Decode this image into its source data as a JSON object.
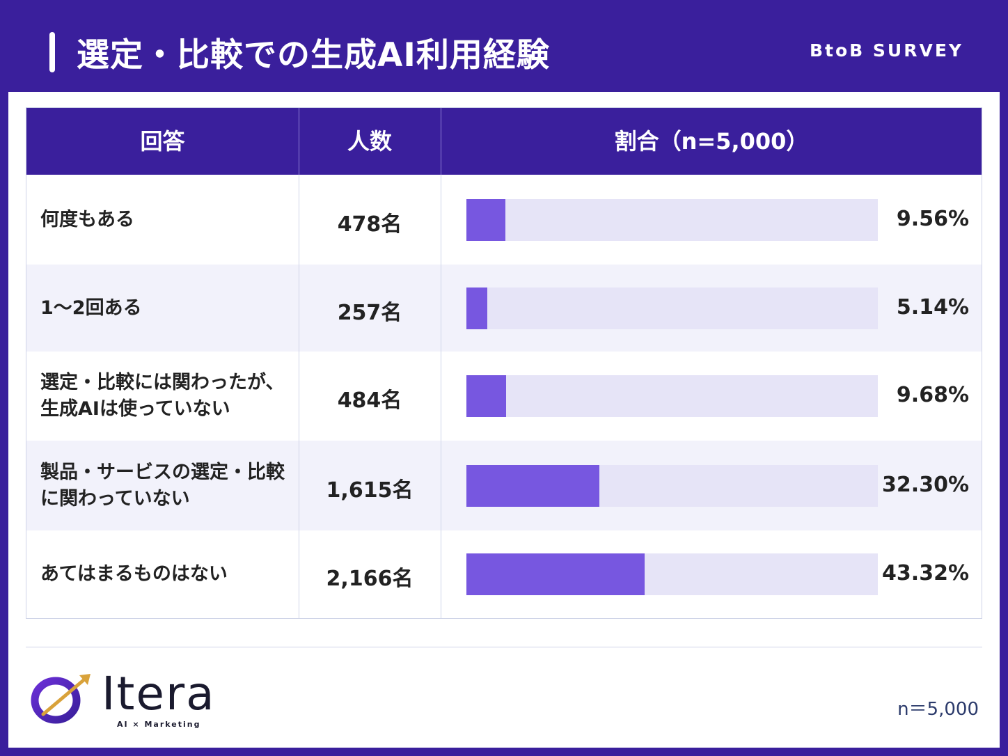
{
  "header": {
    "title": "選定・比較での生成AI利用経験",
    "tag": "BtoB SURVEY"
  },
  "table": {
    "columns": [
      "回答",
      "人数",
      "割合（n=5,000）"
    ]
  },
  "chart_data": {
    "type": "table",
    "bar_max": 100,
    "rows": [
      {
        "label_lines": [
          "何度もある"
        ],
        "count": "478名",
        "percent_text": "9.56%",
        "percent": 9.56
      },
      {
        "label_lines": [
          "1〜2回ある"
        ],
        "count": "257名",
        "percent_text": "5.14%",
        "percent": 5.14
      },
      {
        "label_lines": [
          "選定・比較には関わったが、",
          "生成AIは使っていない"
        ],
        "count": "484名",
        "percent_text": "9.68%",
        "percent": 9.68
      },
      {
        "label_lines": [
          "製品・サービスの選定・比較",
          "に関わっていない"
        ],
        "count": "1,615名",
        "percent_text": "32.30%",
        "percent": 32.3
      },
      {
        "label_lines": [
          "あてはまるものはない"
        ],
        "count": "2,166名",
        "percent_text": "43.32%",
        "percent": 43.32
      }
    ]
  },
  "footer": {
    "logo_text": "Itera",
    "logo_sub": "AI × Marketing",
    "note": "n＝5,000"
  },
  "colors": {
    "brand": "#3a1f9c",
    "bar_fill": "#7757e0",
    "bar_track": "#e6e4f7",
    "row_alt": "#f2f2fb"
  }
}
